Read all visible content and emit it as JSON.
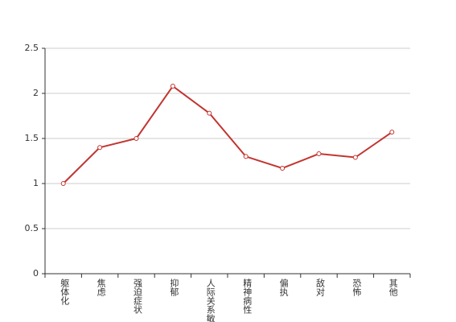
{
  "chart_data": {
    "type": "line",
    "categories": [
      "躯体化",
      "焦虑",
      "强迫症状",
      "抑郁",
      "人际关系敏感",
      "精神病性",
      "偏执",
      "敌对",
      "恐怖",
      "其他"
    ],
    "values": [
      1.0,
      1.4,
      1.5,
      2.08,
      1.78,
      1.3,
      1.17,
      1.33,
      1.29,
      1.57
    ],
    "color": "#c23531",
    "ylim": [
      0,
      2.5
    ],
    "yticks": [
      0,
      0.5,
      1,
      1.5,
      2,
      2.5
    ],
    "grid": true
  }
}
